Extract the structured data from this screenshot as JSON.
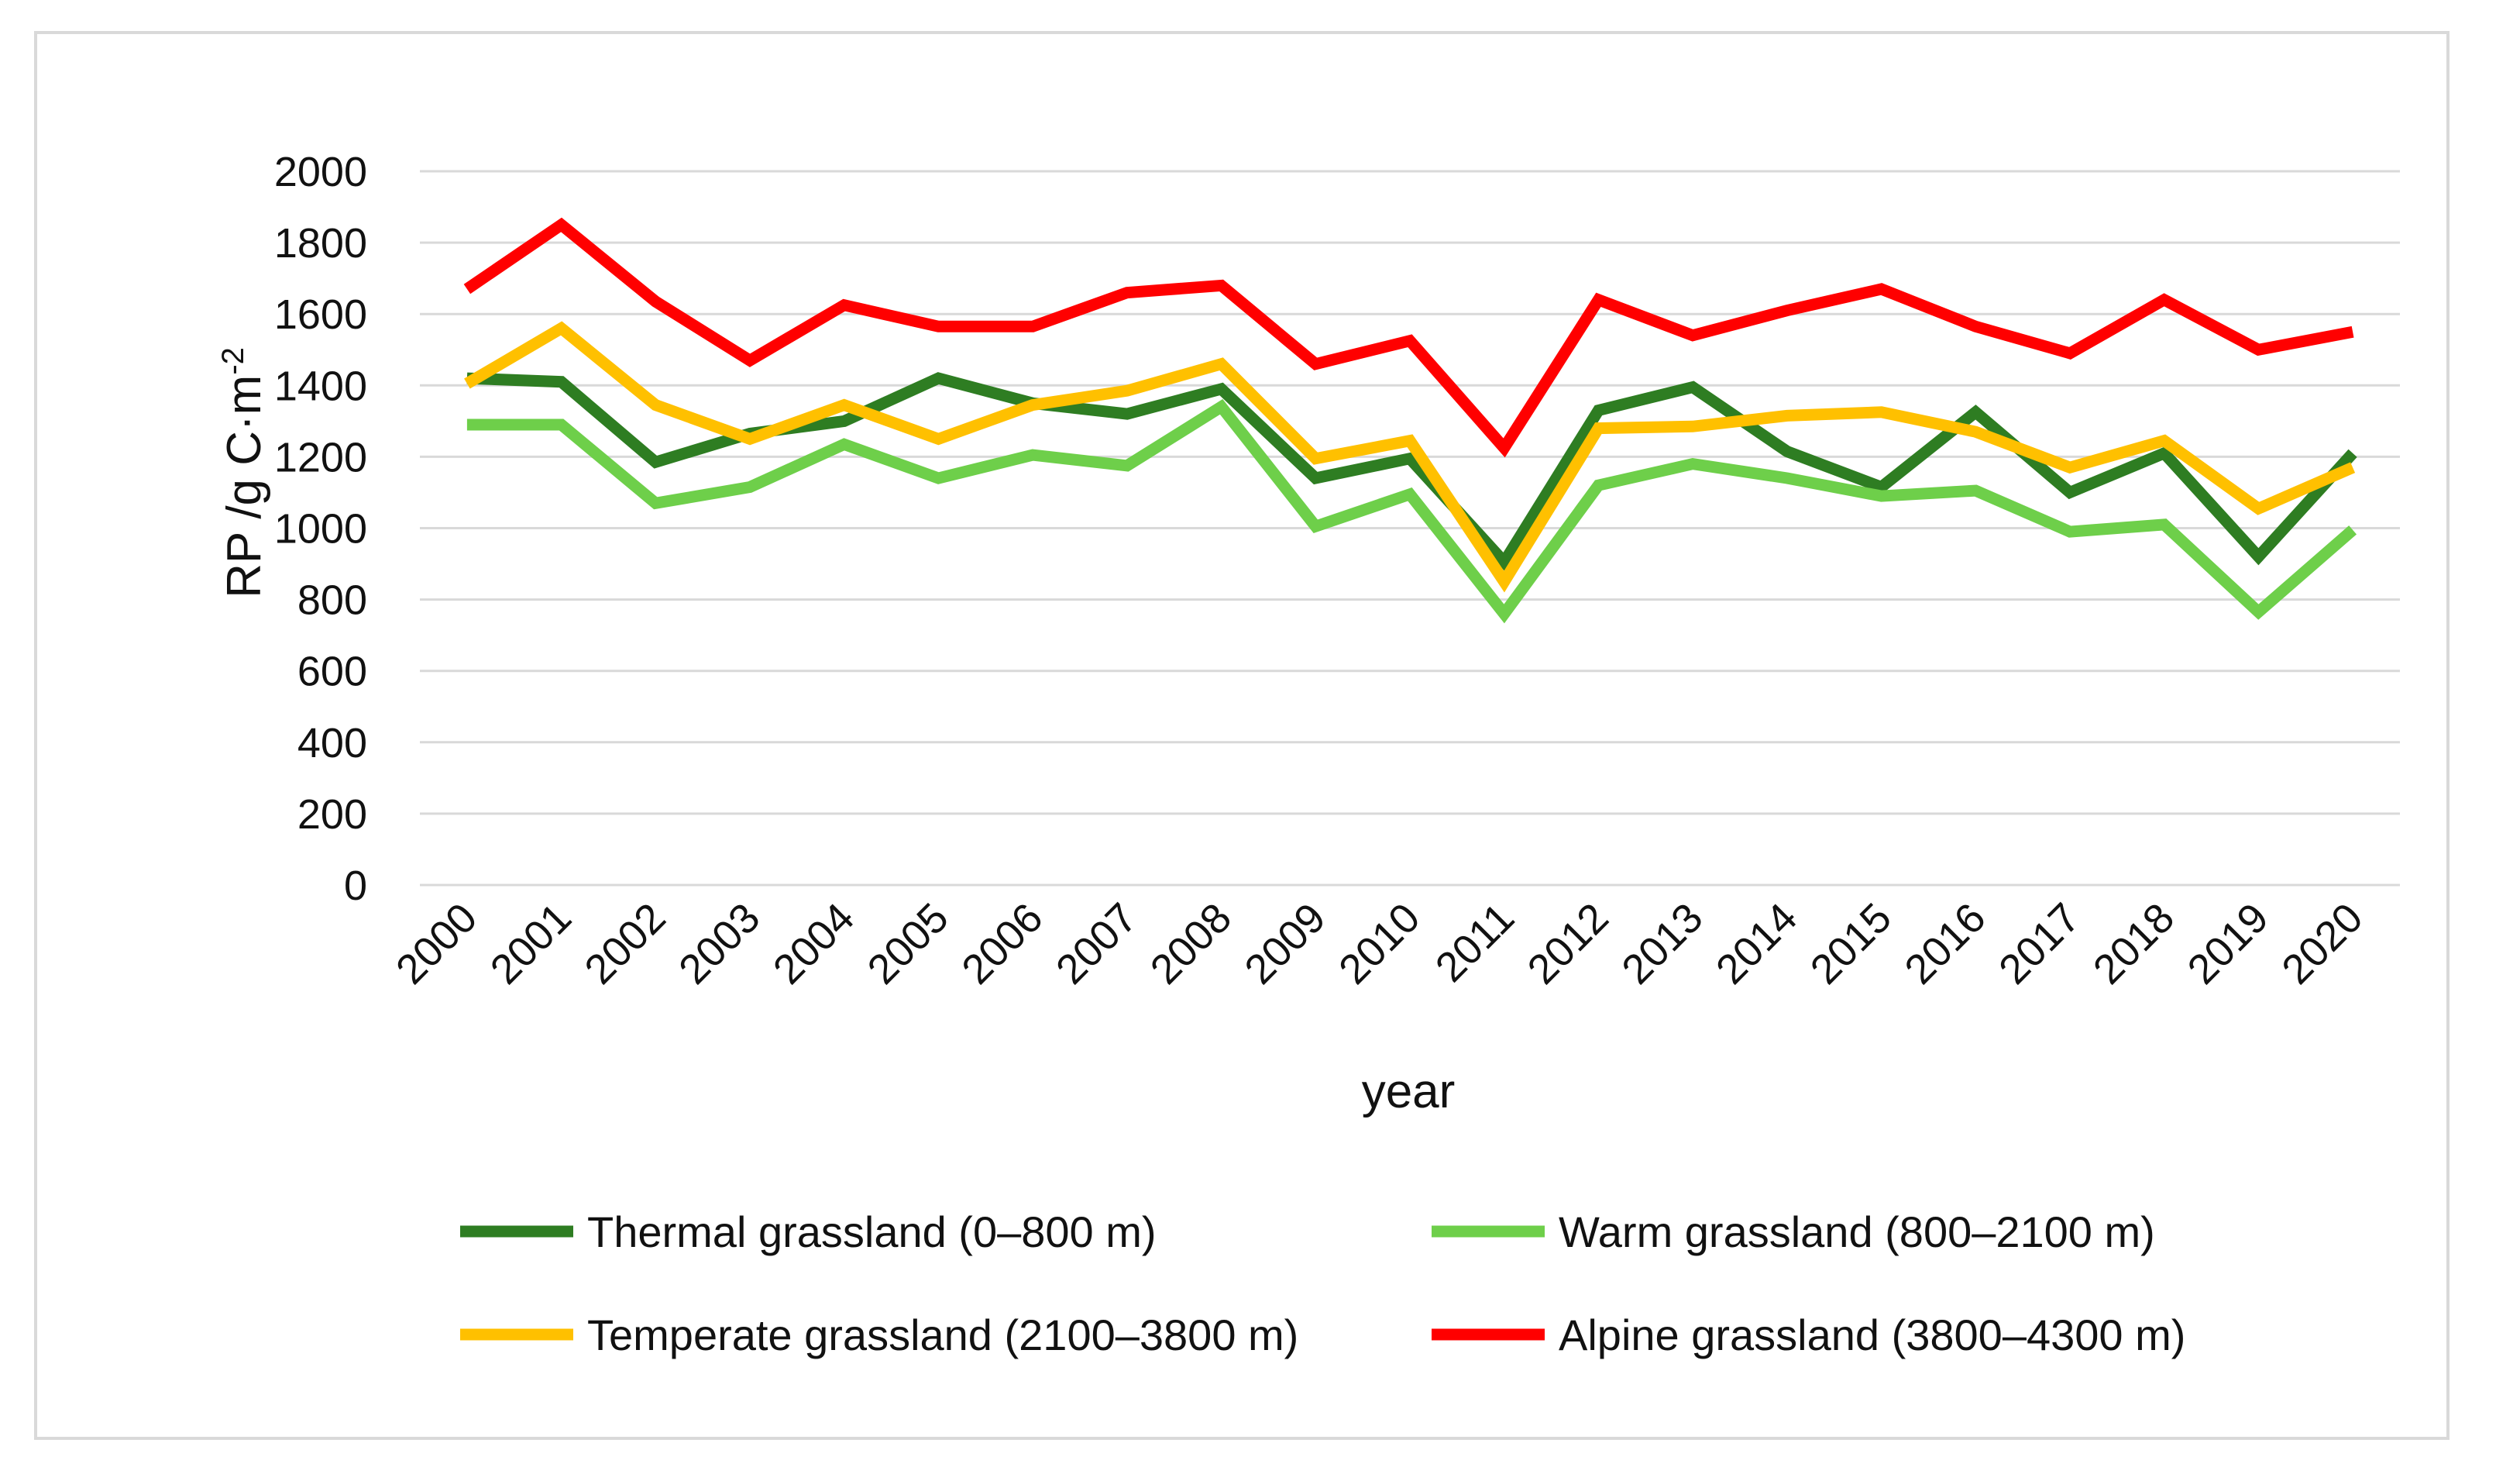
{
  "chart_data": {
    "type": "line",
    "title": "",
    "xlabel": "year",
    "ylabel": "RP /g C·m",
    "ylabel_superscript": "-2",
    "ylim": [
      0,
      2000
    ],
    "y_ticks": [
      0,
      200,
      400,
      600,
      800,
      1000,
      1200,
      1400,
      1600,
      1800,
      2000
    ],
    "grid": true,
    "legend_position": "bottom",
    "categories": [
      "2000",
      "2001",
      "2002",
      "2003",
      "2004",
      "2005",
      "2006",
      "2007",
      "2008",
      "2009",
      "2010",
      "2011",
      "2012",
      "2013",
      "2014",
      "2015",
      "2016",
      "2017",
      "2018",
      "2019",
      "2020"
    ],
    "series": [
      {
        "name": "Thermal grassland (0–800 m)",
        "color": "#2e7d22",
        "values": [
          1420,
          1410,
          1185,
          1265,
          1300,
          1420,
          1350,
          1320,
          1390,
          1140,
          1195,
          905,
          1330,
          1395,
          1215,
          1115,
          1325,
          1100,
          1210,
          920,
          1210
        ]
      },
      {
        "name": "Warm grassland (800–2100 m)",
        "color": "#6ecf4a",
        "values": [
          1290,
          1290,
          1070,
          1115,
          1235,
          1140,
          1205,
          1175,
          1340,
          1005,
          1095,
          760,
          1120,
          1180,
          1140,
          1090,
          1105,
          990,
          1010,
          765,
          995
        ]
      },
      {
        "name": "Temperate grassland (2100–3800 m)",
        "color": "#ffc000",
        "values": [
          1405,
          1560,
          1345,
          1250,
          1345,
          1250,
          1345,
          1385,
          1460,
          1195,
          1245,
          850,
          1280,
          1285,
          1315,
          1325,
          1270,
          1170,
          1245,
          1055,
          1170
        ]
      },
      {
        "name": "Alpine grassland (3800–4300 m)",
        "color": "#ff0000",
        "values": [
          1670,
          1850,
          1635,
          1470,
          1625,
          1565,
          1565,
          1660,
          1680,
          1460,
          1525,
          1225,
          1640,
          1540,
          1610,
          1670,
          1565,
          1490,
          1640,
          1500,
          1550
        ]
      }
    ]
  }
}
